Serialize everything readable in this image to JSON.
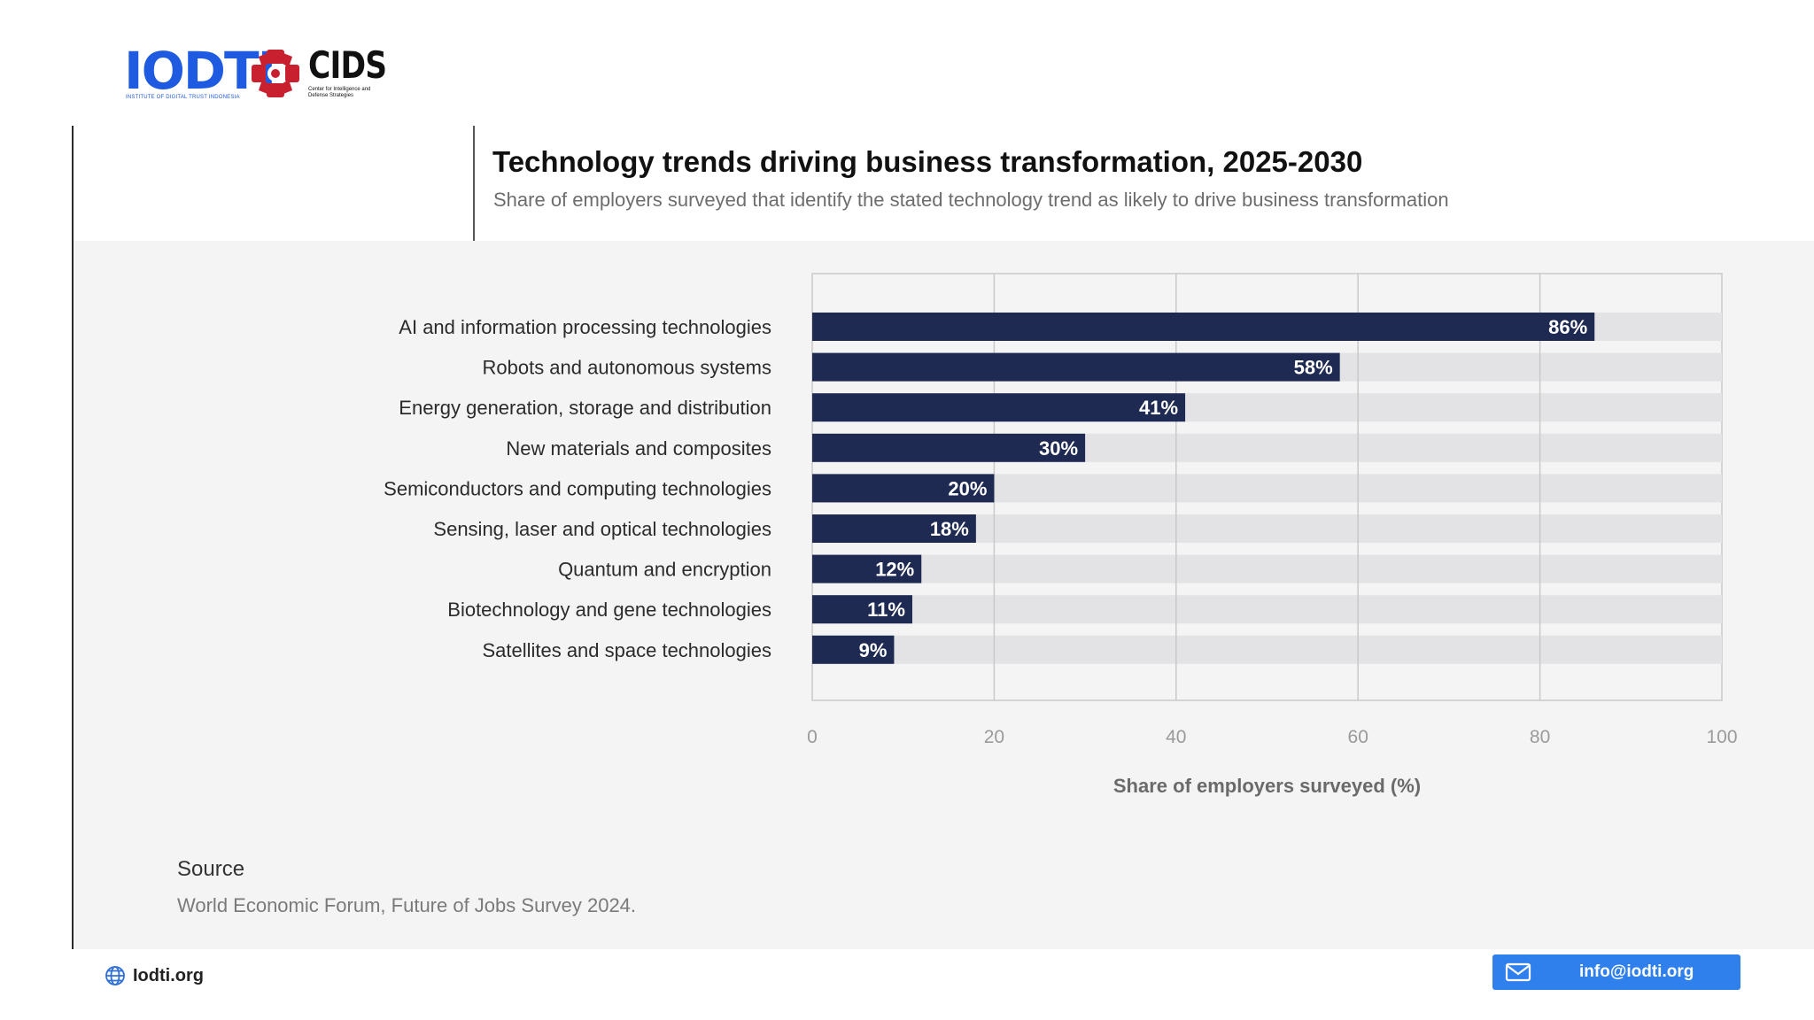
{
  "header": {
    "logo_iodti": "IODTI",
    "logo_iodti_tagline": "INSTITUTE OF DIGITAL TRUST INDONESIA",
    "logo_cids": "CIDS",
    "logo_cids_tagline": "Center for Intelligence and Defense Strategies"
  },
  "chart_data": {
    "type": "bar",
    "orientation": "horizontal",
    "title": "Technology trends driving business transformation, 2025-2030",
    "subtitle": "Share of employers surveyed that identify the stated technology trend as likely to drive business transformation",
    "categories": [
      "AI and information processing technologies",
      "Robots and autonomous systems",
      "Energy generation, storage and distribution",
      "New materials and composites",
      "Semiconductors and computing technologies",
      "Sensing, laser and optical technologies",
      "Quantum and encryption",
      "Biotechnology and gene technologies",
      "Satellites and space technologies"
    ],
    "values": [
      86,
      58,
      41,
      30,
      20,
      18,
      12,
      11,
      9
    ],
    "data_labels": [
      "86%",
      "58%",
      "41%",
      "30%",
      "20%",
      "18%",
      "12%",
      "11%",
      "9%"
    ],
    "xlabel": "Share of employers surveyed (%)",
    "ylabel": "",
    "xlim": [
      0,
      100
    ],
    "xticks": [
      0,
      20,
      40,
      60,
      80,
      100
    ],
    "xtick_labels": [
      "0",
      "20",
      "40",
      "60",
      "80",
      "100"
    ],
    "grid": true,
    "legend": "none",
    "colors": {
      "bar": "#1e2a52",
      "track": "#e3e3e6",
      "grid": "#c9c9c9",
      "label": "#ffffff"
    }
  },
  "source": {
    "label": "Source",
    "text": "World Economic Forum, Future of Jobs Survey 2024."
  },
  "footer": {
    "site": "Iodti.org",
    "email": "info@iodti.org",
    "site_icon": "globe-icon",
    "email_icon": "mail-icon",
    "accent": "#2f80ed"
  }
}
